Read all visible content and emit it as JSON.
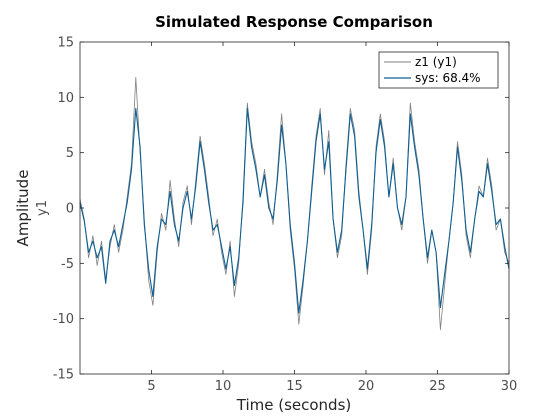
{
  "chart_data": {
    "type": "line",
    "title": "Simulated Response Comparison",
    "xlabel": "Time (seconds)",
    "ylabel": "Amplitude",
    "channel_label": "y1",
    "xlim": [
      0,
      30
    ],
    "ylim": [
      -15,
      15
    ],
    "xticks": [
      5,
      10,
      15,
      20,
      25,
      30
    ],
    "yticks": [
      -15,
      -10,
      -5,
      0,
      5,
      10,
      15
    ],
    "grid": false,
    "legend_position": "top-right",
    "series": [
      {
        "name": "z1 (y1)",
        "color": "#808080",
        "points": [
          [
            0,
            0.8
          ],
          [
            0.3,
            -1.0
          ],
          [
            0.6,
            -4.5
          ],
          [
            0.9,
            -2.5
          ],
          [
            1.2,
            -5.2
          ],
          [
            1.5,
            -3.0
          ],
          [
            1.8,
            -6.5
          ],
          [
            2.1,
            -3.5
          ],
          [
            2.4,
            -1.5
          ],
          [
            2.7,
            -4.0
          ],
          [
            3.0,
            -2.0
          ],
          [
            3.3,
            1.0
          ],
          [
            3.6,
            4.0
          ],
          [
            3.9,
            11.8
          ],
          [
            4.2,
            5.0
          ],
          [
            4.5,
            -1.0
          ],
          [
            4.8,
            -6.5
          ],
          [
            5.1,
            -8.8
          ],
          [
            5.4,
            -4.0
          ],
          [
            5.7,
            -0.5
          ],
          [
            6.0,
            -2.0
          ],
          [
            6.3,
            2.5
          ],
          [
            6.6,
            -1.0
          ],
          [
            6.9,
            -3.5
          ],
          [
            7.2,
            0.5
          ],
          [
            7.5,
            2.0
          ],
          [
            7.8,
            -1.5
          ],
          [
            8.1,
            2.5
          ],
          [
            8.4,
            6.5
          ],
          [
            8.7,
            4.0
          ],
          [
            9.0,
            1.0
          ],
          [
            9.3,
            -2.5
          ],
          [
            9.6,
            -1.0
          ],
          [
            9.9,
            -4.0
          ],
          [
            10.2,
            -6.0
          ],
          [
            10.5,
            -3.0
          ],
          [
            10.8,
            -8.0
          ],
          [
            11.1,
            -5.0
          ],
          [
            11.4,
            1.0
          ],
          [
            11.7,
            9.5
          ],
          [
            12.0,
            6.0
          ],
          [
            12.3,
            4.0
          ],
          [
            12.6,
            1.0
          ],
          [
            12.9,
            3.5
          ],
          [
            13.2,
            0.5
          ],
          [
            13.5,
            -1.5
          ],
          [
            13.8,
            3.0
          ],
          [
            14.1,
            8.5
          ],
          [
            14.4,
            4.0
          ],
          [
            14.7,
            -2.0
          ],
          [
            15.0,
            -5.5
          ],
          [
            15.3,
            -10.5
          ],
          [
            15.6,
            -7.0
          ],
          [
            15.9,
            -3.0
          ],
          [
            16.2,
            2.0
          ],
          [
            16.5,
            6.5
          ],
          [
            16.8,
            9.0
          ],
          [
            17.1,
            3.0
          ],
          [
            17.4,
            7.0
          ],
          [
            17.7,
            -1.0
          ],
          [
            18.0,
            -4.5
          ],
          [
            18.3,
            -2.5
          ],
          [
            18.6,
            4.0
          ],
          [
            18.9,
            9.0
          ],
          [
            19.2,
            7.0
          ],
          [
            19.5,
            1.5
          ],
          [
            19.8,
            -2.0
          ],
          [
            20.1,
            -6.0
          ],
          [
            20.4,
            -2.0
          ],
          [
            20.7,
            5.5
          ],
          [
            21.0,
            8.5
          ],
          [
            21.3,
            6.0
          ],
          [
            21.6,
            1.0
          ],
          [
            21.9,
            4.5
          ],
          [
            22.2,
            0.0
          ],
          [
            22.5,
            -2.0
          ],
          [
            22.8,
            1.0
          ],
          [
            23.1,
            9.5
          ],
          [
            23.4,
            6.0
          ],
          [
            23.7,
            3.5
          ],
          [
            24.0,
            -1.0
          ],
          [
            24.3,
            -5.0
          ],
          [
            24.6,
            -2.0
          ],
          [
            24.9,
            -4.0
          ],
          [
            25.2,
            -11.0
          ],
          [
            25.5,
            -7.0
          ],
          [
            25.8,
            -3.0
          ],
          [
            26.1,
            0.5
          ],
          [
            26.4,
            6.0
          ],
          [
            26.7,
            3.0
          ],
          [
            27.0,
            -2.5
          ],
          [
            27.3,
            -4.5
          ],
          [
            27.6,
            -1.0
          ],
          [
            27.9,
            2.0
          ],
          [
            28.2,
            1.0
          ],
          [
            28.5,
            4.5
          ],
          [
            28.8,
            2.0
          ],
          [
            29.1,
            -2.0
          ],
          [
            29.4,
            -1.0
          ],
          [
            29.7,
            -4.0
          ],
          [
            30.0,
            -5.0
          ]
        ]
      },
      {
        "name": "sys: 68.4%",
        "color": "#0e5f94",
        "points": [
          [
            0,
            0.5
          ],
          [
            0.3,
            -1.2
          ],
          [
            0.6,
            -4.0
          ],
          [
            0.9,
            -3.0
          ],
          [
            1.2,
            -4.5
          ],
          [
            1.5,
            -3.5
          ],
          [
            1.8,
            -6.8
          ],
          [
            2.1,
            -3.0
          ],
          [
            2.4,
            -2.0
          ],
          [
            2.7,
            -3.5
          ],
          [
            3.0,
            -1.5
          ],
          [
            3.3,
            0.5
          ],
          [
            3.6,
            3.5
          ],
          [
            3.9,
            9.0
          ],
          [
            4.2,
            5.5
          ],
          [
            4.5,
            -1.5
          ],
          [
            4.8,
            -5.5
          ],
          [
            5.1,
            -8.0
          ],
          [
            5.4,
            -3.5
          ],
          [
            5.7,
            -1.0
          ],
          [
            6.0,
            -1.5
          ],
          [
            6.3,
            1.5
          ],
          [
            6.6,
            -1.5
          ],
          [
            6.9,
            -3.0
          ],
          [
            7.2,
            0.0
          ],
          [
            7.5,
            1.5
          ],
          [
            7.8,
            -1.0
          ],
          [
            8.1,
            2.0
          ],
          [
            8.4,
            6.0
          ],
          [
            8.7,
            3.5
          ],
          [
            9.0,
            0.5
          ],
          [
            9.3,
            -2.0
          ],
          [
            9.6,
            -1.5
          ],
          [
            9.9,
            -3.5
          ],
          [
            10.2,
            -5.5
          ],
          [
            10.5,
            -3.5
          ],
          [
            10.8,
            -7.0
          ],
          [
            11.1,
            -4.5
          ],
          [
            11.4,
            0.5
          ],
          [
            11.7,
            9.0
          ],
          [
            12.0,
            5.5
          ],
          [
            12.3,
            3.5
          ],
          [
            12.6,
            1.0
          ],
          [
            12.9,
            3.0
          ],
          [
            13.2,
            0.0
          ],
          [
            13.5,
            -1.0
          ],
          [
            13.8,
            2.5
          ],
          [
            14.1,
            7.5
          ],
          [
            14.4,
            4.0
          ],
          [
            14.7,
            -1.5
          ],
          [
            15.0,
            -5.0
          ],
          [
            15.3,
            -9.5
          ],
          [
            15.6,
            -6.5
          ],
          [
            15.9,
            -3.0
          ],
          [
            16.2,
            1.5
          ],
          [
            16.5,
            6.0
          ],
          [
            16.8,
            8.5
          ],
          [
            17.1,
            3.5
          ],
          [
            17.4,
            6.0
          ],
          [
            17.7,
            -1.0
          ],
          [
            18.0,
            -4.0
          ],
          [
            18.3,
            -2.0
          ],
          [
            18.6,
            3.5
          ],
          [
            18.9,
            8.5
          ],
          [
            19.2,
            6.5
          ],
          [
            19.5,
            1.0
          ],
          [
            19.8,
            -2.0
          ],
          [
            20.1,
            -5.5
          ],
          [
            20.4,
            -1.5
          ],
          [
            20.7,
            5.0
          ],
          [
            21.0,
            8.0
          ],
          [
            21.3,
            5.5
          ],
          [
            21.6,
            1.0
          ],
          [
            21.9,
            4.0
          ],
          [
            22.2,
            0.0
          ],
          [
            22.5,
            -1.5
          ],
          [
            22.8,
            1.0
          ],
          [
            23.1,
            8.5
          ],
          [
            23.4,
            5.5
          ],
          [
            23.7,
            3.0
          ],
          [
            24.0,
            -1.0
          ],
          [
            24.3,
            -4.5
          ],
          [
            24.6,
            -2.0
          ],
          [
            24.9,
            -4.0
          ],
          [
            25.2,
            -9.0
          ],
          [
            25.5,
            -6.0
          ],
          [
            25.8,
            -3.0
          ],
          [
            26.1,
            0.5
          ],
          [
            26.4,
            5.5
          ],
          [
            26.7,
            2.5
          ],
          [
            27.0,
            -2.0
          ],
          [
            27.3,
            -4.0
          ],
          [
            27.6,
            -1.0
          ],
          [
            27.9,
            1.5
          ],
          [
            28.2,
            1.0
          ],
          [
            28.5,
            4.0
          ],
          [
            28.8,
            1.5
          ],
          [
            29.1,
            -1.5
          ],
          [
            29.4,
            -1.0
          ],
          [
            29.7,
            -3.5
          ],
          [
            30.0,
            -5.5
          ]
        ]
      }
    ]
  }
}
